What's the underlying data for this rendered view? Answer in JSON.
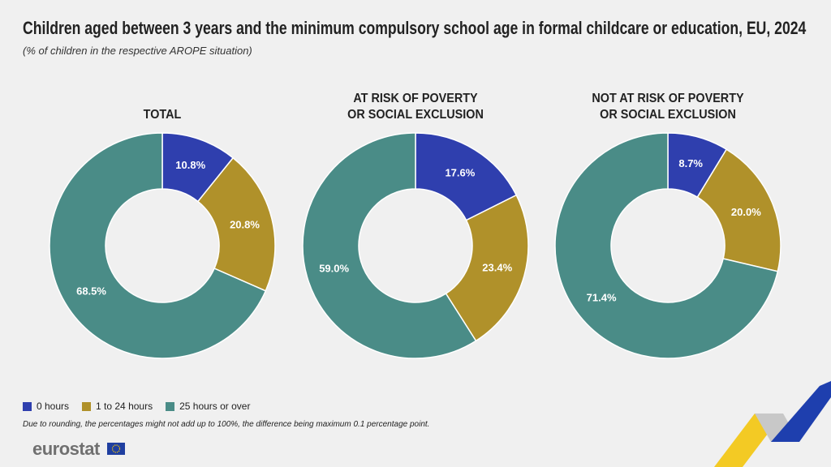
{
  "title": "Children aged between 3 years and the minimum compulsory school age in formal childcare or education, EU, 2024",
  "subtitle": "(% of children in the respective AROPE situation)",
  "note": "Due to rounding, the percentages might not add up to 100%, the difference being maximum 0.1 percentage point.",
  "brand": "eurostat",
  "chart_data": [
    {
      "type": "pie",
      "donut": true,
      "title": "TOTAL",
      "categories": [
        "0 hours",
        "1 to 24 hours",
        "25 hours or over"
      ],
      "values": [
        10.8,
        20.8,
        68.5
      ],
      "value_labels": [
        "10.8%",
        "20.8%",
        "68.5%"
      ],
      "colors": [
        "#2f3fae",
        "#b0912a",
        "#4a8c87"
      ]
    },
    {
      "type": "pie",
      "donut": true,
      "title": "AT RISK OF POVERTY\nOR SOCIAL EXCLUSION",
      "categories": [
        "0 hours",
        "1 to 24 hours",
        "25 hours or over"
      ],
      "values": [
        17.6,
        23.4,
        59.0
      ],
      "value_labels": [
        "17.6%",
        "23.4%",
        "59.0%"
      ],
      "colors": [
        "#2f3fae",
        "#b0912a",
        "#4a8c87"
      ]
    },
    {
      "type": "pie",
      "donut": true,
      "title": "NOT AT RISK OF POVERTY\nOR SOCIAL EXCLUSION",
      "categories": [
        "0 hours",
        "1 to 24 hours",
        "25 hours or over"
      ],
      "values": [
        8.7,
        20.0,
        71.4
      ],
      "value_labels": [
        "8.7%",
        "20.0%",
        "71.4%"
      ],
      "colors": [
        "#2f3fae",
        "#b0912a",
        "#4a8c87"
      ]
    }
  ]
}
